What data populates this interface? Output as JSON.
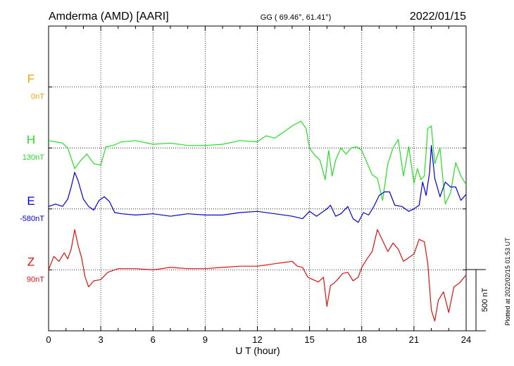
{
  "header": {
    "station": "Amderma (AMD)  [AARI]",
    "coords": "GG ( 69.46°,  61.41°)",
    "date": "2022/01/15"
  },
  "footer": {
    "plotted_at": "Plotted at 2022/02/15 01:53 UT"
  },
  "chart_data": {
    "type": "line",
    "title": "Amderma (AMD)  [AARI]",
    "xlabel": "U T (hour)",
    "ylabel": "",
    "xlim": [
      0,
      24
    ],
    "x_ticks": [
      0,
      3,
      6,
      9,
      12,
      15,
      18,
      21,
      24
    ],
    "x_tick_labels": [
      "0",
      "3",
      "6",
      "9",
      "12",
      "15",
      "18",
      "21",
      "24"
    ],
    "grid": true,
    "scale_bar_label": "500 nT",
    "scale_bar_nT": 500,
    "nT_per_grid_row": 500,
    "channels": [
      {
        "name": "F",
        "baseline_label": "0nT",
        "color": "#f5a300",
        "row": 1,
        "has_trace": false
      },
      {
        "name": "H",
        "baseline_label": "130nT",
        "color": "#22e022",
        "row": 2,
        "has_trace": true
      },
      {
        "name": "E",
        "baseline_label": "-580nT",
        "color": "#0000dd",
        "row": 3,
        "has_trace": true
      },
      {
        "name": "Z",
        "baseline_label": "90nT",
        "color": "#e01010",
        "row": 4,
        "has_trace": true
      }
    ],
    "series": [
      {
        "name": "H",
        "x": [
          0,
          0.4,
          0.8,
          1.1,
          1.5,
          1.8,
          2.2,
          2.6,
          3.0,
          3.3,
          3.7,
          4.2,
          5.0,
          6.0,
          7.0,
          8.0,
          9.0,
          10.0,
          11.0,
          12.0,
          12.5,
          13.0,
          13.5,
          14.0,
          14.5,
          14.8,
          15.0,
          15.3,
          15.6,
          15.9,
          16.1,
          16.3,
          16.5,
          16.8,
          17.1,
          17.4,
          17.7,
          18.0,
          18.3,
          18.6,
          18.9,
          19.2,
          19.5,
          19.8,
          20.1,
          20.4,
          20.7,
          21.0,
          21.2,
          21.4,
          21.6,
          21.8,
          22.0,
          22.2,
          22.5,
          22.8,
          23.1,
          23.4,
          23.7,
          24.0
        ],
        "values": [
          60,
          50,
          40,
          0,
          -170,
          -110,
          -50,
          -130,
          -140,
          10,
          20,
          50,
          60,
          30,
          40,
          20,
          20,
          30,
          60,
          50,
          100,
          80,
          130,
          180,
          220,
          160,
          0,
          -60,
          -100,
          -260,
          -20,
          -230,
          -100,
          0,
          -50,
          0,
          10,
          -20,
          -120,
          -220,
          -250,
          -430,
          -130,
          0,
          70,
          -230,
          10,
          -290,
          -170,
          -260,
          -230,
          160,
          180,
          -130,
          0,
          -460,
          -370,
          -120,
          -230,
          -300
        ]
      },
      {
        "name": "E",
        "x": [
          0,
          0.4,
          0.8,
          1.1,
          1.3,
          1.5,
          1.7,
          2.0,
          2.3,
          2.6,
          2.9,
          3.2,
          3.5,
          3.8,
          4.2,
          5.0,
          6.0,
          7.0,
          8.0,
          9.0,
          10.0,
          11.0,
          12.0,
          13.0,
          14.0,
          14.6,
          15.0,
          15.4,
          15.8,
          16.0,
          16.2,
          16.5,
          16.8,
          17.2,
          17.5,
          17.8,
          18.1,
          18.4,
          18.7,
          19.0,
          19.3,
          19.6,
          19.9,
          20.3,
          20.7,
          21.0,
          21.3,
          21.5,
          21.7,
          21.9,
          22.0,
          22.2,
          22.5,
          22.8,
          23.1,
          23.4,
          23.7,
          24.0
        ],
        "values": [
          20,
          40,
          20,
          80,
          180,
          300,
          230,
          80,
          20,
          -10,
          70,
          100,
          60,
          -30,
          -40,
          -50,
          -40,
          -60,
          -40,
          -50,
          -50,
          -30,
          -20,
          -40,
          -60,
          -80,
          -20,
          -60,
          -20,
          0,
          30,
          -60,
          -40,
          20,
          -80,
          -110,
          -30,
          -50,
          20,
          110,
          140,
          140,
          30,
          20,
          -20,
          0,
          30,
          220,
          110,
          300,
          520,
          250,
          100,
          220,
          180,
          180,
          70,
          120
        ]
      },
      {
        "name": "Z",
        "x": [
          0,
          0.3,
          0.6,
          0.9,
          1.1,
          1.3,
          1.5,
          1.7,
          1.9,
          2.1,
          2.3,
          2.6,
          3.0,
          3.4,
          4.0,
          5.0,
          6.0,
          7.0,
          8.0,
          9.0,
          10.0,
          11.0,
          12.0,
          12.5,
          13.0,
          13.5,
          14.0,
          14.3,
          14.6,
          14.9,
          15.2,
          15.5,
          15.8,
          16.0,
          16.2,
          16.4,
          16.6,
          16.9,
          17.2,
          17.5,
          17.8,
          18.0,
          18.3,
          18.6,
          18.9,
          19.2,
          19.5,
          19.8,
          20.1,
          20.4,
          20.7,
          21.0,
          21.3,
          21.6,
          21.8,
          22.0,
          22.2,
          22.4,
          22.7,
          23.0,
          23.3,
          23.6,
          23.9,
          24.0
        ],
        "values": [
          0,
          110,
          70,
          140,
          90,
          170,
          330,
          200,
          100,
          -60,
          -140,
          -90,
          -80,
          -20,
          10,
          10,
          0,
          20,
          10,
          10,
          20,
          30,
          30,
          40,
          50,
          60,
          70,
          30,
          20,
          -60,
          -80,
          -100,
          -60,
          -300,
          -130,
          -110,
          -80,
          -30,
          -20,
          -90,
          -60,
          20,
          90,
          150,
          330,
          240,
          150,
          220,
          170,
          70,
          100,
          130,
          250,
          230,
          50,
          -330,
          -420,
          -250,
          -180,
          -350,
          -140,
          -110,
          -60,
          -40
        ]
      }
    ]
  }
}
